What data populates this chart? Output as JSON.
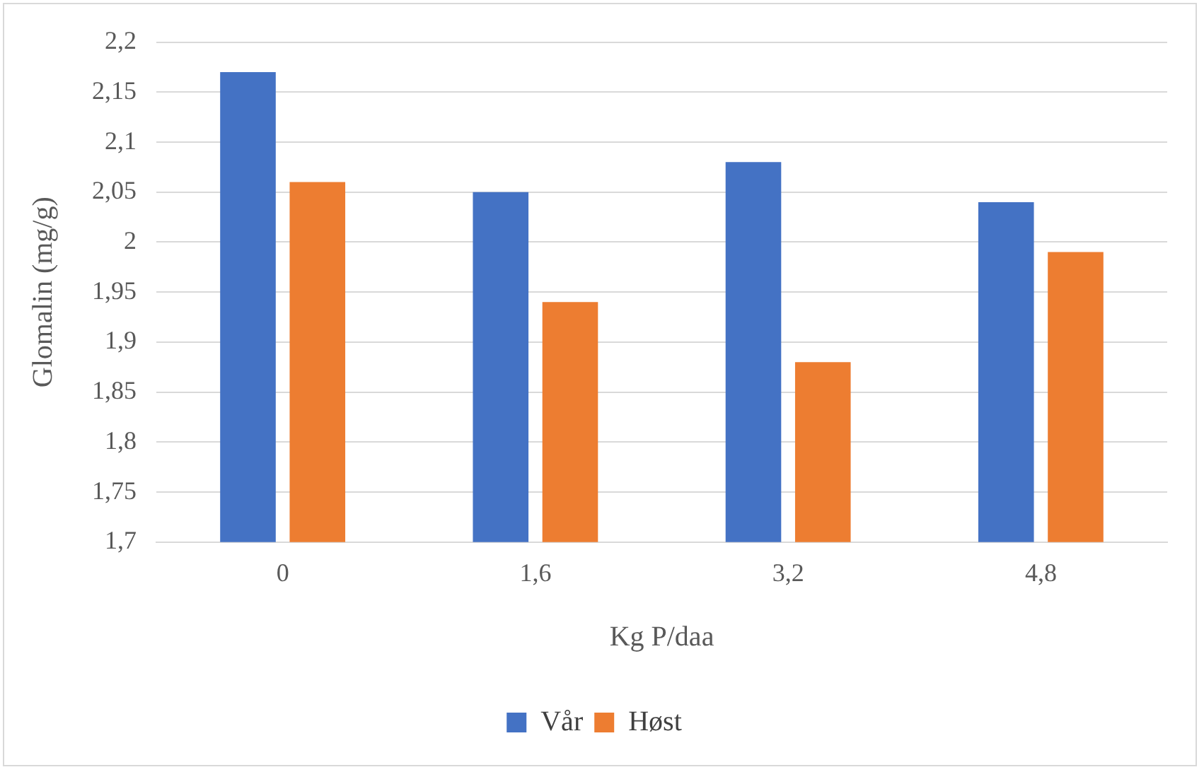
{
  "chart_data": {
    "type": "bar",
    "xlabel": "Kg P/daa",
    "ylabel": "Glomalin (mg/g)",
    "categories": [
      "0",
      "1,6",
      "3,2",
      "4,8"
    ],
    "series": [
      {
        "name": "Vår",
        "color": "#4472c4",
        "values": [
          2.17,
          2.05,
          2.08,
          2.04
        ]
      },
      {
        "name": "Høst",
        "color": "#ed7d31",
        "values": [
          2.06,
          1.94,
          1.88,
          1.99
        ]
      }
    ],
    "ylim": [
      1.7,
      2.2
    ],
    "yticks": [
      {
        "value": 1.7,
        "label": "1,7"
      },
      {
        "value": 1.75,
        "label": "1,75"
      },
      {
        "value": 1.8,
        "label": "1,8"
      },
      {
        "value": 1.85,
        "label": "1,85"
      },
      {
        "value": 1.9,
        "label": "1,9"
      },
      {
        "value": 1.95,
        "label": "1,95"
      },
      2,
      {
        "value": 2.05,
        "label": "2,05"
      },
      {
        "value": 2.1,
        "label": "2,1"
      },
      {
        "value": 2.15,
        "label": "2,15"
      },
      {
        "value": 2.2,
        "label": "2,2"
      }
    ],
    "grid": "y",
    "legend": "bottom"
  }
}
